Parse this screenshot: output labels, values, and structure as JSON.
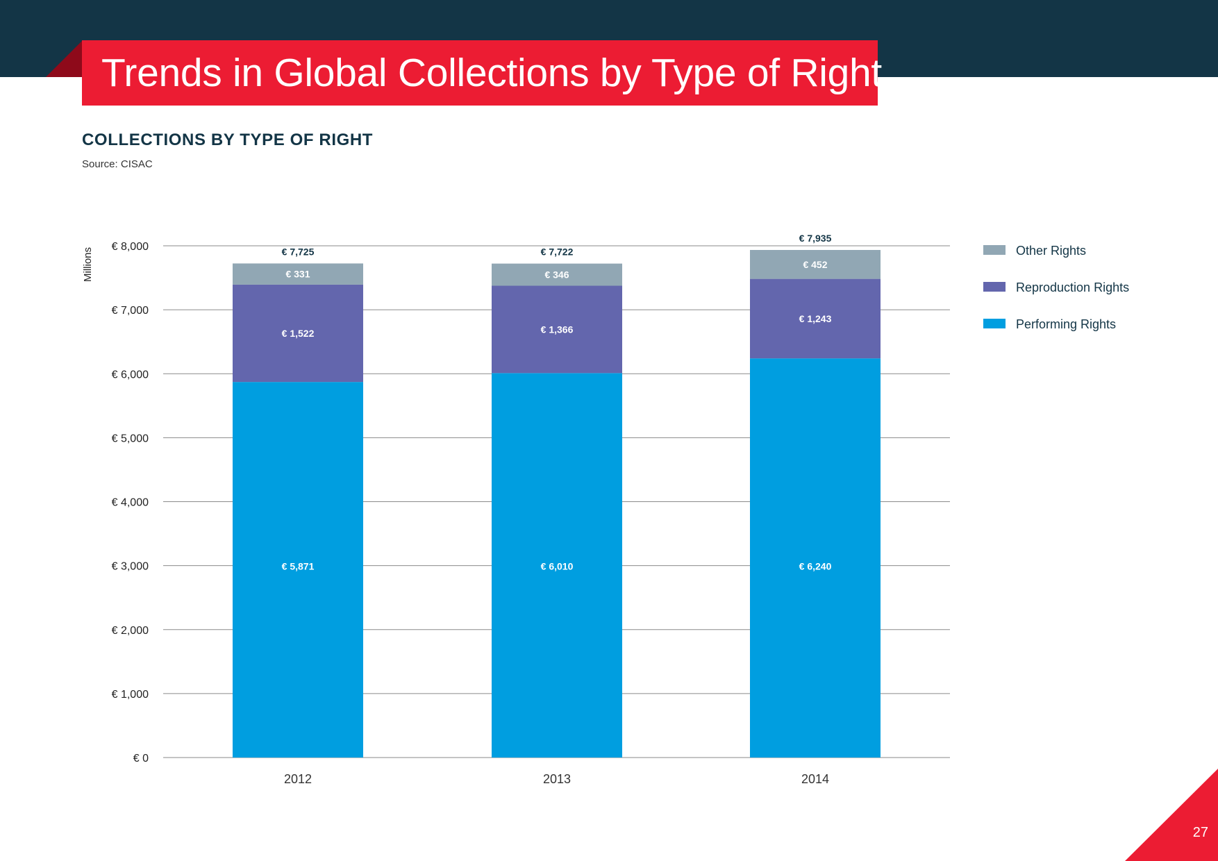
{
  "page": {
    "title": "Trends in Global Collections by Type of Right",
    "section_heading": "COLLECTIONS BY TYPE OF RIGHT",
    "source": "Source: CISAC",
    "page_number": "27"
  },
  "colors": {
    "header_band": "#133546",
    "title_red": "#ec1c33",
    "other": "#91a7b4",
    "reproduction": "#6366ad",
    "performing": "#009ee0",
    "gridline": "#8a8a8a"
  },
  "chart_data": {
    "type": "bar",
    "stacked": true,
    "title": "COLLECTIONS BY TYPE OF RIGHT",
    "xlabel": "",
    "ylabel": "Millions",
    "ylim": [
      0,
      8000
    ],
    "yticks": [
      0,
      1000,
      2000,
      3000,
      4000,
      5000,
      6000,
      7000,
      8000
    ],
    "ytick_labels": [
      "€ 0",
      "€ 1,000",
      "€ 2,000",
      "€ 3,000",
      "€ 4,000",
      "€ 5,000",
      "€ 6,000",
      "€ 7,000",
      "€ 8,000"
    ],
    "grid": true,
    "legend_position": "right",
    "categories": [
      "2012",
      "2013",
      "2014"
    ],
    "series": [
      {
        "name": "Performing Rights",
        "color_key": "performing",
        "values": [
          5871,
          6010,
          6240
        ],
        "labels": [
          "€ 5,871",
          "€ 6,010",
          "€ 6,240"
        ]
      },
      {
        "name": "Reproduction Rights",
        "color_key": "reproduction",
        "values": [
          1522,
          1366,
          1243
        ],
        "labels": [
          "€ 1,522",
          "€ 1,366",
          "€ 1,243"
        ]
      },
      {
        "name": "Other Rights",
        "color_key": "other",
        "values": [
          331,
          346,
          452
        ],
        "labels": [
          "€ 331",
          "€ 346",
          "€ 452"
        ]
      }
    ],
    "totals": [
      7725,
      7722,
      7935
    ],
    "total_labels": [
      "€ 7,725",
      "€ 7,722",
      "€ 7,935"
    ],
    "legend": [
      "Other Rights",
      "Reproduction Rights",
      "Performing Rights"
    ]
  }
}
